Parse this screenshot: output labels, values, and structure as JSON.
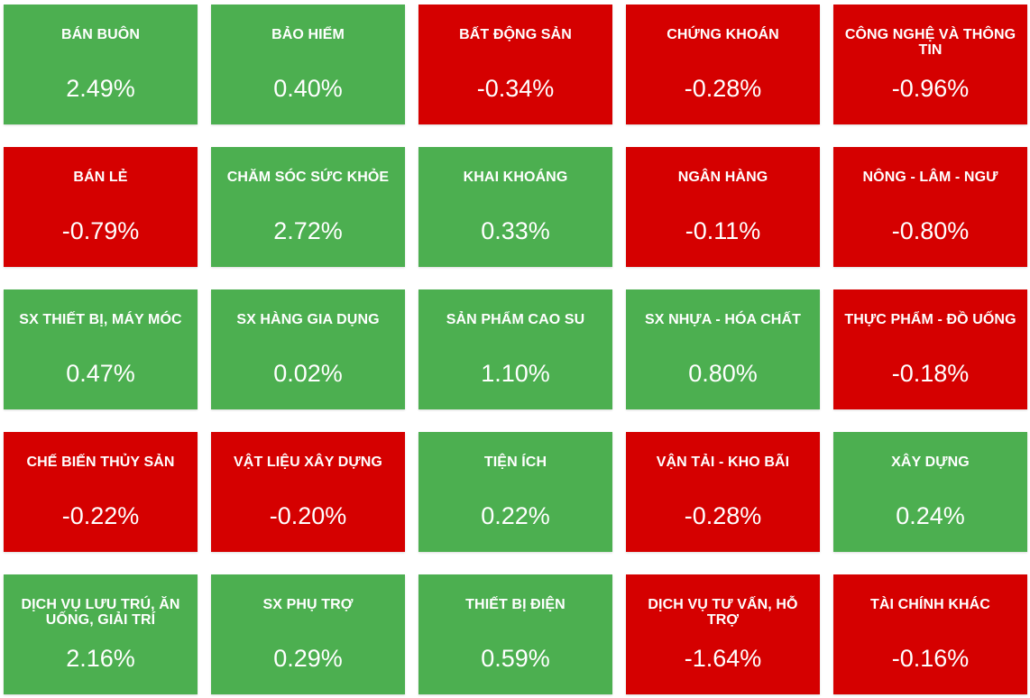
{
  "colors": {
    "up": "#4caf50",
    "down": "#d50000",
    "text": "#ffffff"
  },
  "sectors": [
    {
      "name": "BÁN BUÔN",
      "change": "2.49%",
      "direction": "up"
    },
    {
      "name": "BẢO HIỂM",
      "change": "0.40%",
      "direction": "up"
    },
    {
      "name": "BẤT ĐỘNG SẢN",
      "change": "-0.34%",
      "direction": "down"
    },
    {
      "name": "CHỨNG KHOÁN",
      "change": "-0.28%",
      "direction": "down"
    },
    {
      "name": "CÔNG NGHỆ VÀ THÔNG TIN",
      "change": "-0.96%",
      "direction": "down"
    },
    {
      "name": "BÁN LẺ",
      "change": "-0.79%",
      "direction": "down"
    },
    {
      "name": "CHĂM SÓC SỨC KHỎE",
      "change": "2.72%",
      "direction": "up"
    },
    {
      "name": "KHAI KHOÁNG",
      "change": "0.33%",
      "direction": "up"
    },
    {
      "name": "NGÂN HÀNG",
      "change": "-0.11%",
      "direction": "down"
    },
    {
      "name": "NÔNG - LÂM - NGƯ",
      "change": "-0.80%",
      "direction": "down"
    },
    {
      "name": "SX THIẾT BỊ, MÁY MÓC",
      "change": "0.47%",
      "direction": "up"
    },
    {
      "name": "SX HÀNG GIA DỤNG",
      "change": "0.02%",
      "direction": "up"
    },
    {
      "name": "SẢN PHẨM CAO SU",
      "change": "1.10%",
      "direction": "up"
    },
    {
      "name": "SX NHỰA - HÓA CHẤT",
      "change": "0.80%",
      "direction": "up"
    },
    {
      "name": "THỰC PHẨM - ĐỒ UỐNG",
      "change": "-0.18%",
      "direction": "down"
    },
    {
      "name": "CHẾ BIẾN THỦY SẢN",
      "change": "-0.22%",
      "direction": "down"
    },
    {
      "name": "VẬT LIỆU XÂY DỰNG",
      "change": "-0.20%",
      "direction": "down"
    },
    {
      "name": "TIỆN ÍCH",
      "change": "0.22%",
      "direction": "up"
    },
    {
      "name": "VẬN TẢI - KHO BÃI",
      "change": "-0.28%",
      "direction": "down"
    },
    {
      "name": "XÂY DỰNG",
      "change": "0.24%",
      "direction": "up"
    },
    {
      "name": "DỊCH VỤ LƯU TRÚ, ĂN UỐNG, GIẢI TRÍ",
      "change": "2.16%",
      "direction": "up"
    },
    {
      "name": "SX PHỤ TRỢ",
      "change": "0.29%",
      "direction": "up"
    },
    {
      "name": "THIẾT BỊ ĐIỆN",
      "change": "0.59%",
      "direction": "up"
    },
    {
      "name": "DỊCH VỤ TƯ VẤN, HỖ TRỢ",
      "change": "-1.64%",
      "direction": "down"
    },
    {
      "name": "TÀI CHÍNH KHÁC",
      "change": "-0.16%",
      "direction": "down"
    }
  ]
}
